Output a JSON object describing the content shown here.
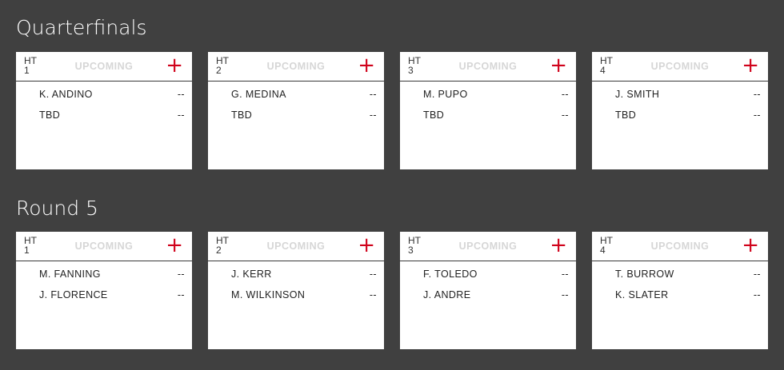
{
  "accent_color": "#d0021b",
  "sections": [
    {
      "title": "Quarterfinals",
      "heats": [
        {
          "heat": "HT",
          "num": "1",
          "status": "UPCOMING",
          "athletes": [
            {
              "name": "K. ANDINO",
              "score": "--"
            },
            {
              "name": "TBD",
              "score": "--"
            }
          ]
        },
        {
          "heat": "HT",
          "num": "2",
          "status": "UPCOMING",
          "athletes": [
            {
              "name": "G. MEDINA",
              "score": "--"
            },
            {
              "name": "TBD",
              "score": "--"
            }
          ]
        },
        {
          "heat": "HT",
          "num": "3",
          "status": "UPCOMING",
          "athletes": [
            {
              "name": "M. PUPO",
              "score": "--"
            },
            {
              "name": "TBD",
              "score": "--"
            }
          ]
        },
        {
          "heat": "HT",
          "num": "4",
          "status": "UPCOMING",
          "athletes": [
            {
              "name": "J. SMITH",
              "score": "--"
            },
            {
              "name": "TBD",
              "score": "--"
            }
          ]
        }
      ]
    },
    {
      "title": "Round 5",
      "heats": [
        {
          "heat": "HT",
          "num": "1",
          "status": "UPCOMING",
          "athletes": [
            {
              "name": "M. FANNING",
              "score": "--"
            },
            {
              "name": "J. FLORENCE",
              "score": "--"
            }
          ]
        },
        {
          "heat": "HT",
          "num": "2",
          "status": "UPCOMING",
          "athletes": [
            {
              "name": "J. KERR",
              "score": "--"
            },
            {
              "name": "M. WILKINSON",
              "score": "--"
            }
          ]
        },
        {
          "heat": "HT",
          "num": "3",
          "status": "UPCOMING",
          "athletes": [
            {
              "name": "F. TOLEDO",
              "score": "--"
            },
            {
              "name": "J. ANDRE",
              "score": "--"
            }
          ]
        },
        {
          "heat": "HT",
          "num": "4",
          "status": "UPCOMING",
          "athletes": [
            {
              "name": "T. BURROW",
              "score": "--"
            },
            {
              "name": "K. SLATER",
              "score": "--"
            }
          ]
        }
      ]
    }
  ]
}
